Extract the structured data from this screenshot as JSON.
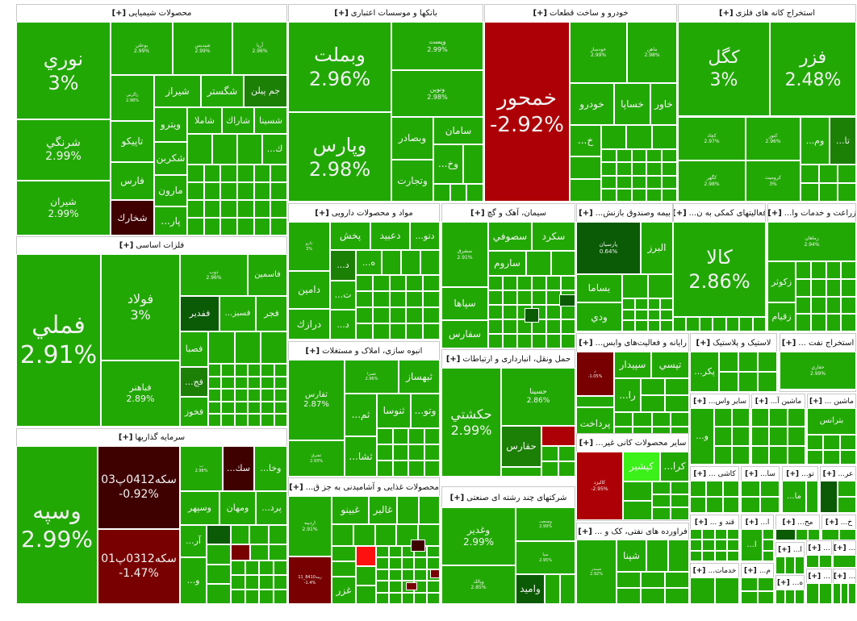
{
  "colors": {
    "up": "#22a805",
    "up_dark": "#1c7f06",
    "up_darker": "#0b5a06",
    "up_bright": "#3cf01a",
    "down_dark": "#3f0000",
    "down_mid": "#780000",
    "down": "#ad0006",
    "down_bright": "#ff1010"
  },
  "expand_label": "[+]",
  "sectors": [
    {
      "title": "محصولات شیمیایی",
      "tiles": [
        {
          "name": "نوري",
          "pct": "3%"
        },
        {
          "name": "شرنگي",
          "pct": "2.99%"
        },
        {
          "name": "شيران",
          "pct": "2.99%"
        },
        {
          "name": "بوعلي",
          "pct": "2.99%"
        },
        {
          "name": "شپديس",
          "pct": "2.99%"
        },
        {
          "name": "آريا",
          "pct": "2.96%"
        },
        {
          "name": "زاگرس",
          "pct": "2.98%"
        },
        {
          "name": "شيراز"
        },
        {
          "name": "شگستر"
        },
        {
          "name": "جم پيلن",
          "color": "#1c7f06"
        },
        {
          "name": "تاپيكو"
        },
        {
          "name": "فارس"
        },
        {
          "name": "شخارك",
          "color": "#3f0000"
        },
        {
          "name": "ويترو"
        },
        {
          "name": "شكربن"
        },
        {
          "name": "مارون"
        },
        {
          "name": "پار..."
        },
        {
          "name": "شاملا"
        },
        {
          "name": "شاراك"
        },
        {
          "name": "شسينا"
        },
        {
          "name": "ك..."
        }
      ]
    },
    {
      "title": "بانکها و موسسات اعتباری",
      "tiles": [
        {
          "name": "وبملت",
          "pct": "2.96%"
        },
        {
          "name": "وپارس",
          "pct": "2.98%"
        },
        {
          "name": "وپست",
          "pct": "2.99%"
        },
        {
          "name": "ونوين",
          "pct": "2.98%"
        },
        {
          "name": "وبصادر"
        },
        {
          "name": "سامان"
        },
        {
          "name": "وتجارت"
        },
        {
          "name": "وخ..."
        }
      ]
    },
    {
      "title": "خودرو و ساخت قطعات",
      "tiles": [
        {
          "name": "خمحور",
          "pct": "-2.92%",
          "color": "#ad0006"
        },
        {
          "name": "خودساز",
          "pct": "2.99%"
        },
        {
          "name": "ماهن",
          "pct": "2.98%"
        },
        {
          "name": "خودرو"
        },
        {
          "name": "خساپا"
        },
        {
          "name": "خاور"
        },
        {
          "name": "خ..."
        }
      ]
    },
    {
      "title": "استخراج کانه های فلزی",
      "tiles": [
        {
          "name": "كگل",
          "pct": "3%"
        },
        {
          "name": "فزر",
          "pct": "2.48%"
        },
        {
          "name": "كچاد",
          "pct": "2.97%"
        },
        {
          "name": "كنور",
          "pct": "2.96%"
        },
        {
          "name": "وم..."
        },
        {
          "name": "تا...",
          "color": "#1c7f06"
        },
        {
          "name": "كگهر",
          "pct": "2.98%"
        },
        {
          "name": "كرومیت",
          "pct": "3%"
        }
      ]
    },
    {
      "title": "فلزات اساسی",
      "tiles": [
        {
          "name": "فملي",
          "pct": "2.91%"
        },
        {
          "name": "فولاد",
          "pct": "3%"
        },
        {
          "name": "فباهنر",
          "pct": "2.89%"
        },
        {
          "name": "ذوب",
          "pct": "2.96%"
        },
        {
          "name": "فاسمين"
        },
        {
          "name": "ففدير",
          "color": "#0b5a06"
        },
        {
          "name": "فسبز..."
        },
        {
          "name": "فجر"
        },
        {
          "name": "فصبا"
        },
        {
          "name": "فج...",
          "color": "#1c7f06"
        },
        {
          "name": "فخوز"
        }
      ]
    },
    {
      "title": "سرمایه گذاریها",
      "tiles": [
        {
          "name": "وسپه",
          "pct": "2.99%"
        },
        {
          "name": "سكه0412پ03",
          "pct": "-0.92%",
          "color": "#3f0000"
        },
        {
          "name": "سكه0312پ01",
          "pct": "-1.47%",
          "color": "#780000"
        },
        {
          "name": "ب",
          "pct": "2.98%"
        },
        {
          "name": "سك...",
          "color": "#3f0000"
        },
        {
          "name": "وخا..."
        },
        {
          "name": "وسپهر"
        },
        {
          "name": "ومهان"
        },
        {
          "name": "پرد..."
        },
        {
          "name": "آر..."
        },
        {
          "name": "و..."
        },
        {
          "color": "#0b5a06"
        },
        {
          "color": "#780000"
        }
      ]
    },
    {
      "title": "مواد و محصولات دارویی",
      "tiles": [
        {
          "name": "دارو",
          "pct": "3%"
        },
        {
          "name": "پخش"
        },
        {
          "name": "دعبيد"
        },
        {
          "name": "دتو..."
        },
        {
          "name": "د...",
          "color": "#1c7f06"
        },
        {
          "name": "ه..."
        },
        {
          "name": "دامين"
        },
        {
          "name": "درازك"
        },
        {
          "name": "ت..."
        },
        {
          "name": "د..."
        }
      ]
    },
    {
      "title": "سیمان، آهک و گچ",
      "tiles": [
        {
          "name": "سشرق",
          "pct": "2.91%"
        },
        {
          "name": "سصوفي"
        },
        {
          "name": "سكرد"
        },
        {
          "name": "ساروم"
        },
        {
          "name": "سپاها"
        },
        {
          "name": "سفارس"
        },
        {
          "color": "#0b5a06"
        },
        {
          "color": "#0b5a06"
        }
      ]
    },
    {
      "title": "انبوه سازی، املاک و مستغلات",
      "tiles": [
        {
          "name": "ثفارس",
          "pct": "2.87%"
        },
        {
          "name": "ثعمرا",
          "pct": "2.96%"
        },
        {
          "name": "ثبهساز"
        },
        {
          "name": "ثم..."
        },
        {
          "name": "ثنوسا"
        },
        {
          "name": "وتو..."
        },
        {
          "name": "ثشرق",
          "pct": "2.93%"
        },
        {
          "name": "ثشا..."
        }
      ]
    },
    {
      "title": "محصولات غذایی و آشامیدنی به جز ق...",
      "tiles": [
        {
          "name": "ارديبه",
          "pct": "2.91%"
        },
        {
          "name": "زمد8410_11",
          "pct": "-1.4%",
          "color": "#780000"
        },
        {
          "name": "غبينو"
        },
        {
          "name": "غالبر"
        },
        {
          "name": "غزر"
        },
        {
          "color": "#ff1010"
        },
        {
          "color": "#3f0000"
        },
        {
          "color": "#780000"
        },
        {
          "color": "#780000"
        }
      ]
    },
    {
      "title": "حمل ونقل، انبارداری و ارتباطات",
      "tiles": [
        {
          "name": "حكشتي",
          "pct": "2.99%"
        },
        {
          "name": "حسينا",
          "pct": "2.86%"
        },
        {
          "name": "حفارس",
          "color": "#1c7f06"
        },
        {
          "color": "#ad0006"
        }
      ]
    },
    {
      "title": "شرکتهای چند رشته ای صنعتی",
      "tiles": [
        {
          "name": "وغدير",
          "pct": "2.99%"
        },
        {
          "name": "وصنعت",
          "pct": "2.99%"
        },
        {
          "name": "سپا",
          "pct": "2.95%"
        },
        {
          "name": "وپالك",
          "pct": "2.85%"
        },
        {
          "name": "واميد",
          "color": "#0b5a06"
        }
      ]
    },
    {
      "title": "بیمه وصندوق بازنش...",
      "tiles": [
        {
          "name": "پارسيان",
          "pct": "0.64%",
          "color": "#0b5a06"
        },
        {
          "name": "البرز"
        },
        {
          "name": "بساما"
        },
        {
          "name": "ودي"
        }
      ]
    },
    {
      "title": "فعالیتهای کمکی به ن...",
      "tiles": [
        {
          "name": "كالا",
          "pct": "2.86%"
        }
      ]
    },
    {
      "title": "زراعت و خدمات وا...",
      "tiles": [
        {
          "name": "زماهان",
          "pct": "2.94%"
        },
        {
          "name": "زكوثر"
        },
        {
          "name": "زقيام"
        }
      ]
    },
    {
      "title": "رایانه و فعالیت‌های وابس...",
      "tiles": [
        {
          "name": "ر",
          "pct": "-1.05%",
          "color": "#780000"
        },
        {
          "name": "سپيدار"
        },
        {
          "name": "تپسي"
        },
        {
          "name": "را..."
        },
        {
          "name": "پرداخت"
        }
      ]
    },
    {
      "title": "لاستیک و پلاستیک",
      "tiles": [
        {
          "name": "پكر..."
        }
      ]
    },
    {
      "title": "استخراج نفت ...",
      "tiles": [
        {
          "name": "حفاري",
          "pct": "2.99%"
        }
      ]
    },
    {
      "title": "سایر محصولات کانی غیر...",
      "tiles": [
        {
          "name": "كاليزد",
          "pct": "-2.95%",
          "color": "#ad0006"
        },
        {
          "name": "كپشير",
          "color": "#3cf01a"
        },
        {
          "name": "كرا..."
        }
      ]
    },
    {
      "title": "فراورده های نفتی، کک و ...",
      "tiles": [
        {
          "name": "شبندر",
          "pct": "2.92%"
        },
        {
          "name": "شپنا"
        }
      ]
    },
    {
      "title": "سایر واس...",
      "tiles": [
        {
          "name": "و..."
        }
      ]
    },
    {
      "title": "ماشین آ...",
      "tiles": []
    },
    {
      "title": "ماشین ...",
      "tiles": [
        {
          "name": "بترانس"
        }
      ]
    },
    {
      "title": "کاشی ...",
      "tiles": []
    },
    {
      "title": "سا...",
      "tiles": []
    },
    {
      "title": "تو...",
      "tiles": [
        {
          "name": "ما..."
        }
      ]
    },
    {
      "title": "عر...",
      "tiles": [
        {
          "color": "#0b5a06"
        }
      ]
    },
    {
      "title": "قند و ...",
      "tiles": []
    },
    {
      "title": "ا...",
      "tiles": [
        {
          "name": "ا..."
        }
      ]
    },
    {
      "title": "مح...",
      "tiles": [
        {
          "color": "#0b5a06"
        }
      ]
    },
    {
      "title": "خ...",
      "tiles": []
    },
    {
      "title": "ا...",
      "tiles": []
    },
    {
      "title": "...",
      "tiles": []
    },
    {
      "title": "...",
      "tiles": []
    },
    {
      "title": "خدمات...",
      "tiles": []
    },
    {
      "title": "م...",
      "tiles": []
    },
    {
      "title": "ه...",
      "tiles": []
    },
    {
      "title": "...",
      "tiles": []
    },
    {
      "title": "...",
      "tiles": []
    }
  ]
}
